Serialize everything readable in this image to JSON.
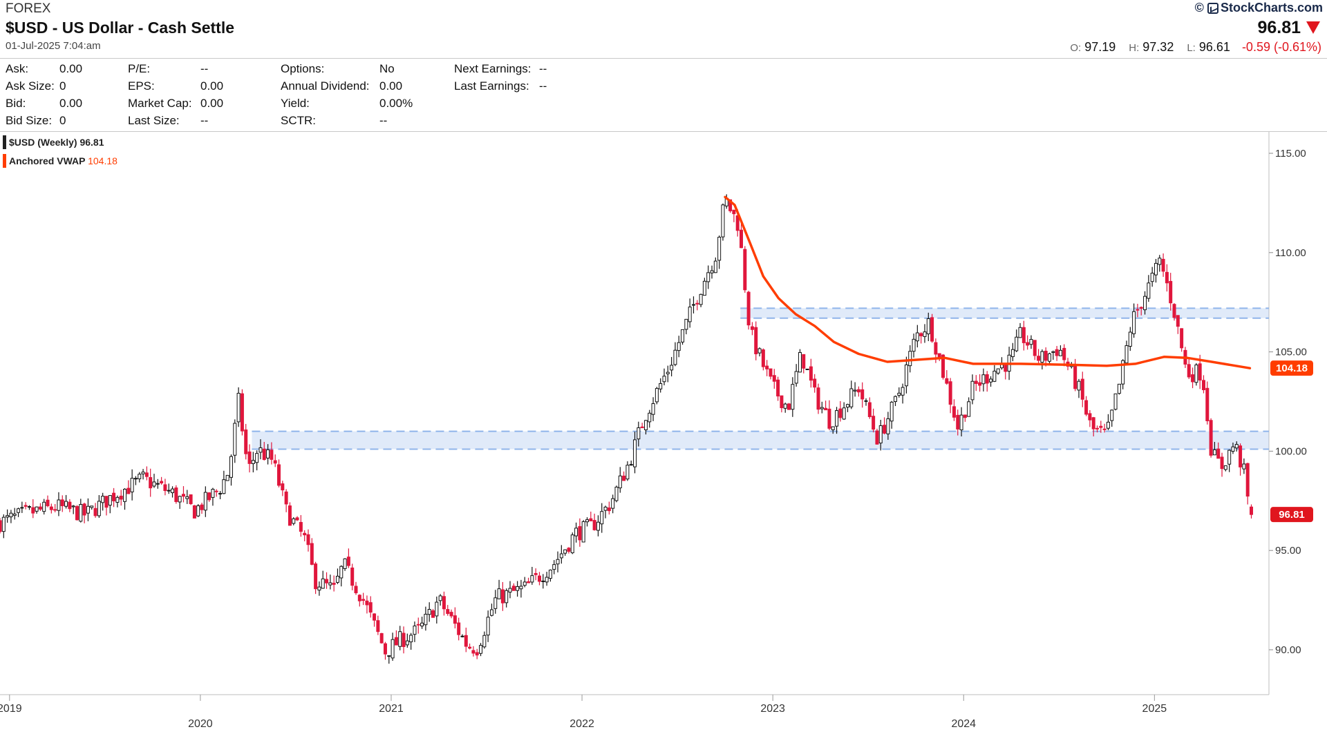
{
  "header": {
    "exchange": "FOREX",
    "title": "$USD - US Dollar - Cash Settle",
    "timestamp": "01-Jul-2025 7:04:am",
    "brand": "StockCharts.com",
    "brand_prefix": "©",
    "last_price": "96.81",
    "open_label": "O:",
    "open": "97.19",
    "high_label": "H:",
    "high": "97.32",
    "low_label": "L:",
    "low": "96.61",
    "change": "-0.59 (-0.61%)",
    "down_color": "#e0161e"
  },
  "quote": {
    "col1": [
      {
        "label": "Ask:",
        "value": "0.00"
      },
      {
        "label": "Ask Size:",
        "value": "0"
      },
      {
        "label": "Bid:",
        "value": "0.00"
      },
      {
        "label": "Bid Size:",
        "value": "0"
      }
    ],
    "col2": [
      {
        "label": "P/E:",
        "value": "--"
      },
      {
        "label": "EPS:",
        "value": "0.00"
      },
      {
        "label": "Market Cap:",
        "value": "0.00"
      },
      {
        "label": "Last Size:",
        "value": "--"
      }
    ],
    "col3": [
      {
        "label": "Options:",
        "value": "No"
      },
      {
        "label": "Annual Dividend:",
        "value": "0.00"
      },
      {
        "label": "Yield:",
        "value": "0.00%"
      },
      {
        "label": "SCTR:",
        "value": "--"
      }
    ],
    "col4": [
      {
        "label": "Next Earnings:",
        "value": "--"
      },
      {
        "label": "Last Earnings:",
        "value": "--"
      }
    ]
  },
  "legend": [
    {
      "label": "$USD (Weekly)",
      "value": "96.81",
      "color": "#222222",
      "value_color": "#222222"
    },
    {
      "label": "Anchored VWAP",
      "value": "104.18",
      "color": "#ff3d00",
      "value_color": "#ff3d00"
    }
  ],
  "chart_data": {
    "type": "candlestick",
    "ylim": [
      88,
      116
    ],
    "yticks": [
      "115.00",
      "110.00",
      "105.00",
      "100.00",
      "95.00",
      "90.00"
    ],
    "ytick_values": [
      115,
      110,
      105,
      100,
      95,
      90
    ],
    "xlim": [
      2018.95,
      2025.6
    ],
    "xticks": [
      {
        "label": "2019",
        "x": 2019.0
      },
      {
        "label": "2020",
        "x": 2020.0
      },
      {
        "label": "2021",
        "x": 2021.0
      },
      {
        "label": "2022",
        "x": 2022.0
      },
      {
        "label": "2023",
        "x": 2023.0
      },
      {
        "label": "2024",
        "x": 2024.0
      },
      {
        "label": "2025",
        "x": 2025.0
      }
    ],
    "price_badge": {
      "value": "96.81",
      "price": 96.81,
      "color": "#e0161e"
    },
    "vwap_badge": {
      "value": "104.18",
      "price": 104.18,
      "color": "#ff3d00"
    },
    "up_color": "#111111",
    "down_color": "#e0163c",
    "vwap_color": "#ff3d00",
    "zone_color": "#8fb4ea",
    "zones": [
      {
        "from": 2020.27,
        "to": 2025.6,
        "low": 100.1,
        "high": 101.0
      },
      {
        "from": 2022.83,
        "to": 2025.6,
        "low": 106.7,
        "high": 107.2
      }
    ],
    "price_path": [
      [
        2018.95,
        96.4
      ],
      [
        2019.1,
        96.9
      ],
      [
        2019.25,
        97.2
      ],
      [
        2019.4,
        96.8
      ],
      [
        2019.55,
        97.8
      ],
      [
        2019.7,
        98.6
      ],
      [
        2019.85,
        97.9
      ],
      [
        2019.97,
        97.0
      ],
      [
        2020.1,
        98.1
      ],
      [
        2020.15,
        99.0
      ],
      [
        2020.2,
        102.5
      ],
      [
        2020.25,
        99.0
      ],
      [
        2020.3,
        100.1
      ],
      [
        2020.38,
        99.5
      ],
      [
        2020.45,
        97.0
      ],
      [
        2020.55,
        95.5
      ],
      [
        2020.6,
        93.5
      ],
      [
        2020.7,
        93.0
      ],
      [
        2020.75,
        94.3
      ],
      [
        2020.85,
        92.6
      ],
      [
        2020.97,
        89.9
      ],
      [
        2021.05,
        90.5
      ],
      [
        2021.15,
        91.0
      ],
      [
        2021.25,
        92.5
      ],
      [
        2021.33,
        91.3
      ],
      [
        2021.4,
        90.2
      ],
      [
        2021.45,
        90.1
      ],
      [
        2021.55,
        92.6
      ],
      [
        2021.7,
        93.1
      ],
      [
        2021.85,
        94.3
      ],
      [
        2021.97,
        95.9
      ],
      [
        2022.05,
        96.2
      ],
      [
        2022.15,
        97.4
      ],
      [
        2022.25,
        99.5
      ],
      [
        2022.33,
        101.8
      ],
      [
        2022.45,
        104.1
      ],
      [
        2022.55,
        106.5
      ],
      [
        2022.62,
        108.2
      ],
      [
        2022.7,
        109.9
      ],
      [
        2022.75,
        112.7
      ],
      [
        2022.82,
        111.4
      ],
      [
        2022.88,
        106.0
      ],
      [
        2022.95,
        104.3
      ],
      [
        2023.0,
        103.2
      ],
      [
        2023.08,
        102.2
      ],
      [
        2023.15,
        104.9
      ],
      [
        2023.22,
        102.8
      ],
      [
        2023.3,
        101.5
      ],
      [
        2023.38,
        102.4
      ],
      [
        2023.45,
        103.2
      ],
      [
        2023.55,
        100.6
      ],
      [
        2023.65,
        102.6
      ],
      [
        2023.75,
        105.8
      ],
      [
        2023.82,
        106.5
      ],
      [
        2023.9,
        103.7
      ],
      [
        2023.97,
        101.2
      ],
      [
        2024.05,
        103.2
      ],
      [
        2024.15,
        104.0
      ],
      [
        2024.25,
        104.6
      ],
      [
        2024.3,
        105.9
      ],
      [
        2024.4,
        104.6
      ],
      [
        2024.5,
        105.2
      ],
      [
        2024.6,
        103.2
      ],
      [
        2024.67,
        101.1
      ],
      [
        2024.75,
        100.8
      ],
      [
        2024.82,
        103.5
      ],
      [
        2024.88,
        106.5
      ],
      [
        2024.97,
        108.3
      ],
      [
        2025.03,
        109.6
      ],
      [
        2025.1,
        107.2
      ],
      [
        2025.17,
        103.9
      ],
      [
        2025.25,
        104.0
      ],
      [
        2025.3,
        99.9
      ],
      [
        2025.35,
        99.2
      ],
      [
        2025.42,
        100.4
      ],
      [
        2025.47,
        98.9
      ],
      [
        2025.5,
        96.81
      ]
    ],
    "vwap_path": [
      [
        2022.75,
        112.8
      ],
      [
        2022.8,
        112.4
      ],
      [
        2022.88,
        110.5
      ],
      [
        2022.95,
        108.8
      ],
      [
        2023.03,
        107.7
      ],
      [
        2023.12,
        106.9
      ],
      [
        2023.22,
        106.3
      ],
      [
        2023.32,
        105.5
      ],
      [
        2023.45,
        104.9
      ],
      [
        2023.6,
        104.5
      ],
      [
        2023.75,
        104.6
      ],
      [
        2023.9,
        104.7
      ],
      [
        2024.05,
        104.4
      ],
      [
        2024.3,
        104.4
      ],
      [
        2024.55,
        104.35
      ],
      [
        2024.75,
        104.3
      ],
      [
        2024.9,
        104.4
      ],
      [
        2025.05,
        104.75
      ],
      [
        2025.17,
        104.7
      ],
      [
        2025.3,
        104.5
      ],
      [
        2025.5,
        104.18
      ]
    ]
  }
}
